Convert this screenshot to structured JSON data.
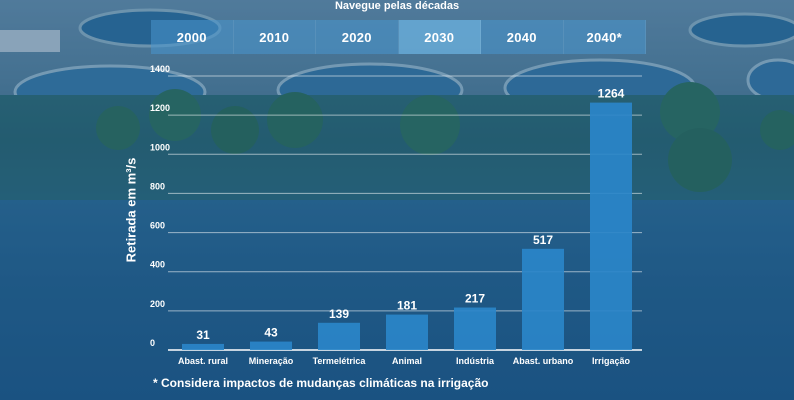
{
  "navigation": {
    "title": "Navegue pelas décadas",
    "decades": [
      "2000",
      "2010",
      "2020",
      "2030",
      "2040",
      "2040*"
    ],
    "active": "2030"
  },
  "chart_data": {
    "type": "bar",
    "ylabel": "Retirada em m³/s",
    "ylim": [
      0,
      1400
    ],
    "yticks": [
      0,
      200,
      400,
      600,
      800,
      1000,
      1200,
      1400
    ],
    "grid": true,
    "categories": [
      "Abast. rural",
      "Mineração",
      "Termelétrica",
      "Animal",
      "Indústria",
      "Abast. urbano",
      "Irrigação"
    ],
    "values": [
      31,
      43,
      139,
      181,
      217,
      517,
      1264
    ],
    "data_labels": [
      "31",
      "43",
      "139",
      "181",
      "217",
      "517",
      "1264"
    ],
    "bar_color": "#2a85c9",
    "grid_color": "#ffffff"
  },
  "footnote": "* Considera impactos de mudanças climáticas na irrigação"
}
